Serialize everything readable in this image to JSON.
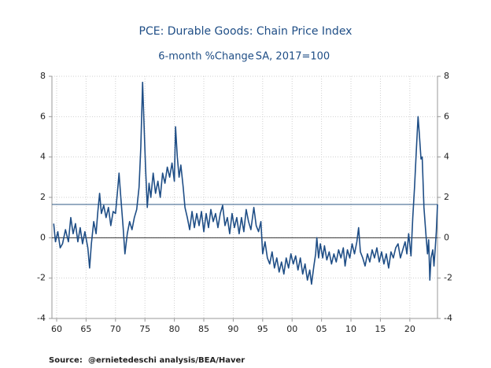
{
  "chart_data": {
    "type": "line",
    "title": "PCE: Durable Goods: Chain Price Index",
    "subtitle": "6-month %Change",
    "subtitle_note": "SA, 2017=100",
    "source_label": "Source:",
    "source": "@ernietedeschi analysis/BEA/Haver",
    "xlim": [
      1959.2,
      2024.7
    ],
    "xticks": [
      {
        "value": 1960,
        "label": "60"
      },
      {
        "value": 1965,
        "label": "65"
      },
      {
        "value": 1970,
        "label": "70"
      },
      {
        "value": 1975,
        "label": "75"
      },
      {
        "value": 1980,
        "label": "80"
      },
      {
        "value": 1985,
        "label": "85"
      },
      {
        "value": 1990,
        "label": "90"
      },
      {
        "value": 1995,
        "label": "95"
      },
      {
        "value": 2000,
        "label": "00"
      },
      {
        "value": 2005,
        "label": "05"
      },
      {
        "value": 2010,
        "label": "10"
      },
      {
        "value": 2015,
        "label": "15"
      },
      {
        "value": 2020,
        "label": "20"
      }
    ],
    "ylim": [
      -4,
      8
    ],
    "yticks": [
      -4,
      -2,
      0,
      2,
      4,
      6,
      8
    ],
    "y2lim": [
      -4,
      8
    ],
    "y2ticks": [
      -4,
      -2,
      0,
      2,
      4,
      6,
      8
    ],
    "grid": true,
    "hlines": [
      {
        "value": 0,
        "color": "#333333"
      },
      {
        "value": 1.65,
        "color": "#2f5a86"
      }
    ],
    "x": [
      1959.5,
      1959.8,
      1960.2,
      1960.6,
      1961,
      1961.5,
      1962,
      1962.4,
      1962.8,
      1963.2,
      1963.6,
      1964,
      1964.4,
      1964.8,
      1965.3,
      1965.6,
      1965.9,
      1966.3,
      1966.7,
      1967,
      1967.3,
      1967.6,
      1968,
      1968.4,
      1968.8,
      1969.2,
      1969.6,
      1970,
      1970.4,
      1970.6,
      1970.9,
      1971.3,
      1971.6,
      1972,
      1972.4,
      1972.8,
      1973.2,
      1973.6,
      1974,
      1974.3,
      1974.6,
      1974.8,
      1975.1,
      1975.4,
      1975.7,
      1976,
      1976.4,
      1976.8,
      1977.2,
      1977.6,
      1978,
      1978.4,
      1978.8,
      1979.2,
      1979.6,
      1980,
      1980.2,
      1980.5,
      1980.8,
      1981.1,
      1981.5,
      1981.8,
      1982.2,
      1982.6,
      1983,
      1983.4,
      1983.8,
      1984.2,
      1984.6,
      1985,
      1985.4,
      1985.8,
      1986.2,
      1986.6,
      1987,
      1987.4,
      1987.8,
      1988.2,
      1988.6,
      1989,
      1989.4,
      1989.8,
      1990.2,
      1990.6,
      1991,
      1991.4,
      1991.8,
      1992.2,
      1992.6,
      1993,
      1993.5,
      1993.9,
      1994.3,
      1994.7,
      1995,
      1995.4,
      1995.8,
      1996.2,
      1996.6,
      1997,
      1997.4,
      1997.8,
      1998.2,
      1998.6,
      1999,
      1999.4,
      1999.8,
      2000.2,
      2000.6,
      2001,
      2001.4,
      2001.8,
      2002.2,
      2002.6,
      2003,
      2003.3,
      2003.7,
      2004,
      2004.2,
      2004.5,
      2004.8,
      2005.2,
      2005.5,
      2005.9,
      2006.3,
      2006.7,
      2007.1,
      2007.5,
      2007.9,
      2008.3,
      2008.7,
      2009,
      2009.4,
      2009.8,
      2010.2,
      2010.6,
      2011,
      2011.3,
      2011.6,
      2012,
      2012.4,
      2012.8,
      2013.2,
      2013.6,
      2014,
      2014.4,
      2014.8,
      2015.2,
      2015.6,
      2016,
      2016.4,
      2016.8,
      2017.2,
      2017.6,
      2018,
      2018.4,
      2018.8,
      2019.2,
      2019.5,
      2019.8,
      2020.2,
      2020.5,
      2020.8,
      2021.1,
      2021.4,
      2021.6,
      2021.9,
      2022.1,
      2022.4,
      2022.7,
      2023,
      2023.2,
      2023.4,
      2023.6,
      2023.9,
      2024.1,
      2024.3,
      2024.5,
      2024.7
    ],
    "series": [
      {
        "color": "#1f4e86",
        "values": [
          0.7,
          -0.2,
          0.3,
          -0.5,
          -0.3,
          0.4,
          -0.2,
          1.0,
          0.2,
          0.7,
          -0.2,
          0.5,
          -0.3,
          0.3,
          -0.5,
          -1.5,
          -0.3,
          0.8,
          0.2,
          1.3,
          2.2,
          1.2,
          1.6,
          1.0,
          1.5,
          0.6,
          1.3,
          1.2,
          2.5,
          3.2,
          2.0,
          0.5,
          -0.8,
          0.2,
          0.8,
          0.4,
          1.0,
          1.4,
          2.5,
          4.5,
          7.7,
          6.0,
          3.5,
          1.5,
          2.7,
          2.0,
          3.2,
          2.2,
          2.8,
          2.0,
          3.2,
          2.7,
          3.5,
          3.0,
          3.7,
          2.8,
          5.5,
          4.0,
          3.0,
          3.6,
          2.5,
          1.5,
          1.0,
          0.4,
          1.3,
          0.5,
          1.2,
          0.6,
          1.3,
          0.3,
          1.2,
          0.5,
          1.4,
          0.8,
          1.2,
          0.5,
          1.2,
          1.6,
          0.6,
          1.0,
          0.2,
          1.2,
          0.5,
          1.0,
          0.2,
          1.0,
          0.3,
          1.4,
          0.8,
          0.4,
          1.5,
          0.6,
          0.3,
          0.8,
          -0.8,
          -0.2,
          -1.0,
          -1.3,
          -0.7,
          -1.5,
          -1.0,
          -1.7,
          -1.2,
          -1.8,
          -1.0,
          -1.5,
          -0.8,
          -1.3,
          -0.9,
          -1.6,
          -1.0,
          -1.8,
          -1.3,
          -2.1,
          -1.6,
          -2.3,
          -1.4,
          -0.8,
          0.0,
          -1.0,
          -0.3,
          -1.0,
          -0.4,
          -1.1,
          -0.7,
          -1.3,
          -0.8,
          -1.2,
          -0.6,
          -1.0,
          -0.5,
          -1.4,
          -0.6,
          -1.0,
          -0.3,
          -0.8,
          -0.2,
          0.5,
          -0.7,
          -1.0,
          -1.4,
          -0.8,
          -1.2,
          -0.6,
          -1.0,
          -0.5,
          -1.2,
          -0.7,
          -1.3,
          -0.8,
          -1.5,
          -0.7,
          -1.0,
          -0.5,
          -0.3,
          -1.0,
          -0.6,
          -0.2,
          -0.8,
          0.2,
          -0.9,
          1.0,
          2.5,
          4.3,
          6.0,
          5.2,
          3.9,
          4.0,
          1.5,
          0.3,
          -0.8,
          -0.1,
          -2.1,
          -1.0,
          -0.6,
          -1.4,
          -0.6,
          0.3,
          1.65
        ]
      }
    ]
  }
}
